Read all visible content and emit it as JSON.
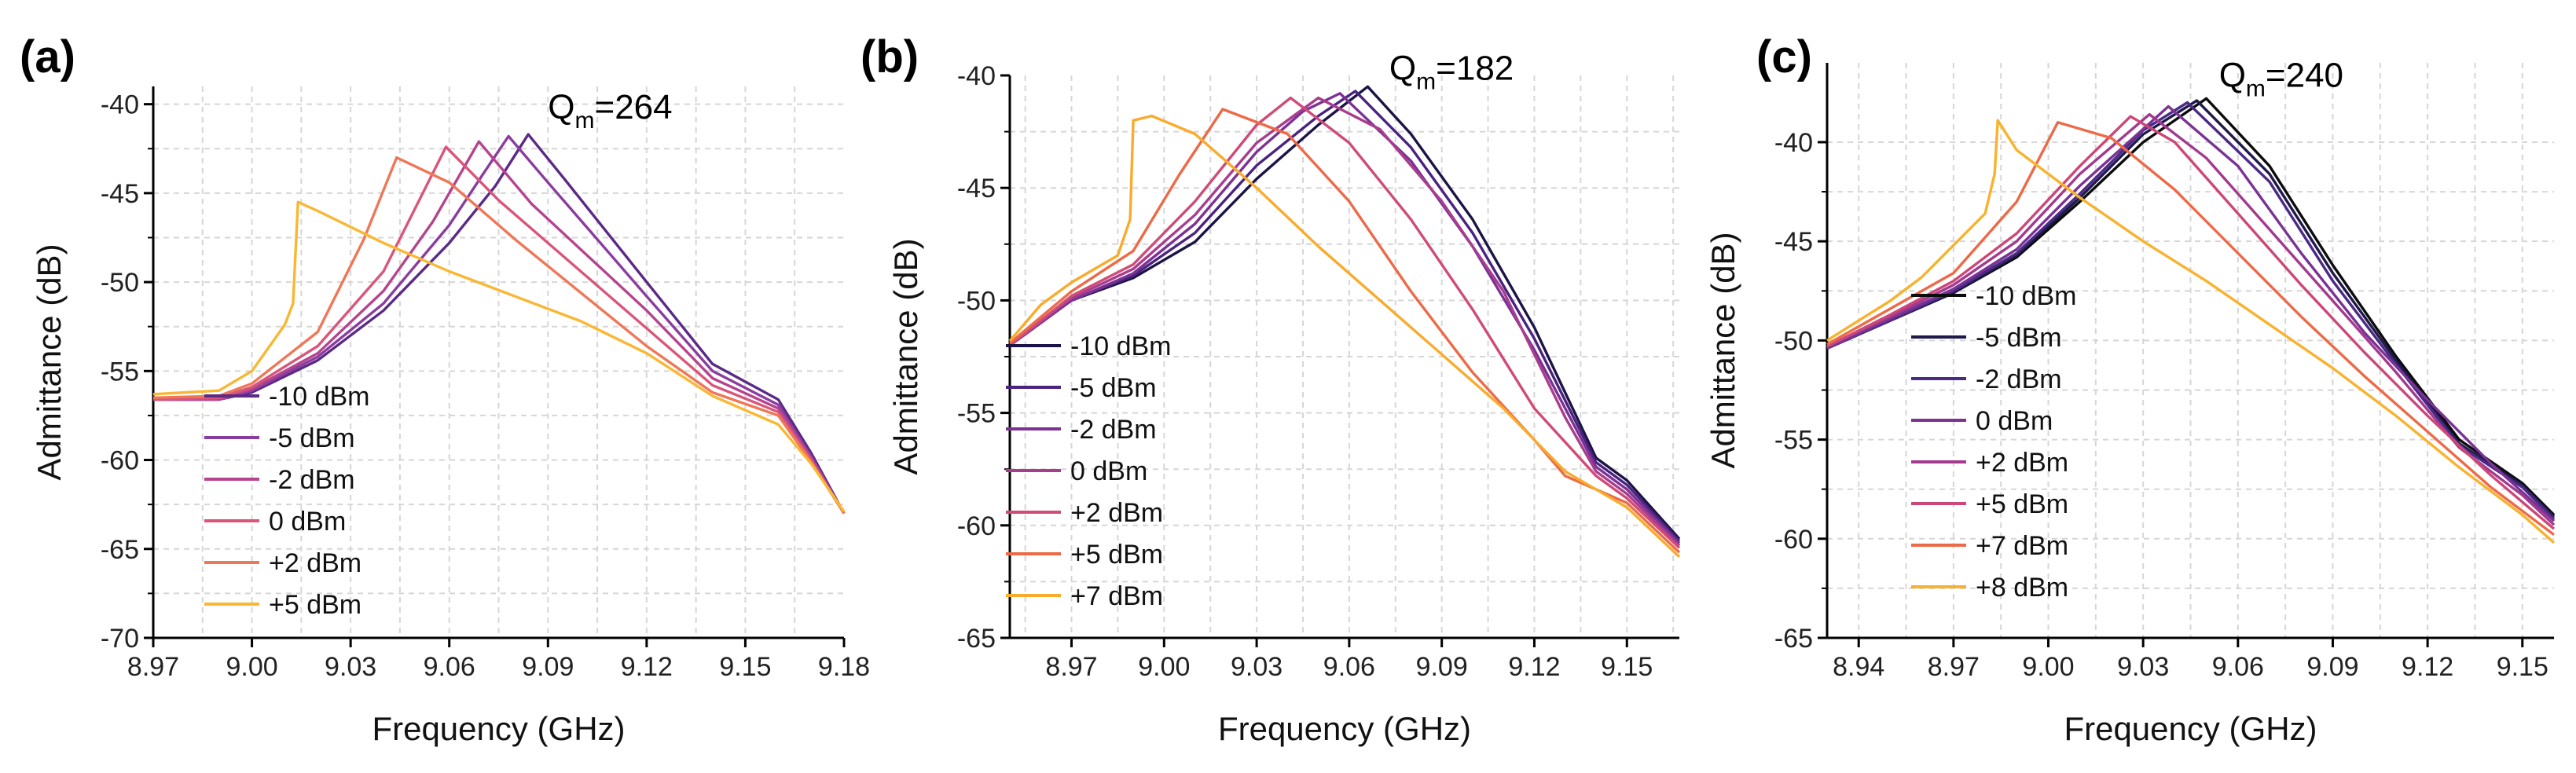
{
  "chart_data": [
    {
      "panel_label": "(a)",
      "type": "line",
      "xlabel": "Frequency (GHz)",
      "ylabel": "Admittance (dB)",
      "xlim": [
        8.97,
        9.18
      ],
      "ylim": [
        -70,
        -39
      ],
      "xticks": [
        "8.97",
        "9.00",
        "9.03",
        "9.06",
        "9.09",
        "9.12",
        "9.15",
        "9.18"
      ],
      "yticks": [
        "-40",
        "-45",
        "-50",
        "-55",
        "-60",
        "-65",
        "-70"
      ],
      "grid": true,
      "annotation": {
        "base": "Q",
        "sub": "m",
        "rest": "=264",
        "x": 9.09,
        "y": -40.8
      },
      "legend_position": "bottom-left",
      "series": [
        {
          "name": "-10 dBm",
          "color": "#5b2a86",
          "peak": 9.084,
          "peakY": -41.7,
          "jump": false,
          "x": [
            8.97,
            8.99,
            9.0,
            9.02,
            9.04,
            9.06,
            9.074,
            9.084,
            9.095,
            9.12,
            9.14,
            9.16,
            9.17,
            9.18
          ],
          "y": [
            -56.6,
            -56.6,
            -56.2,
            -54.4,
            -51.6,
            -47.8,
            -44.6,
            -41.7,
            -44.2,
            -50.0,
            -54.6,
            -56.6,
            -59.6,
            -63.0
          ]
        },
        {
          "name": "-5 dBm",
          "color": "#8a3d9e",
          "peak": 9.078,
          "peakY": -41.8,
          "jump": false,
          "x": [
            8.97,
            8.99,
            9.0,
            9.02,
            9.04,
            9.06,
            9.07,
            9.078,
            9.09,
            9.12,
            9.14,
            9.16,
            9.17,
            9.18
          ],
          "y": [
            -56.6,
            -56.6,
            -56.1,
            -54.2,
            -51.2,
            -46.8,
            -44.0,
            -41.8,
            -44.4,
            -50.8,
            -55.0,
            -56.9,
            -59.8,
            -63.0
          ]
        },
        {
          "name": "-2 dBm",
          "color": "#b5448f",
          "peak": 9.069,
          "peakY": -42.1,
          "jump": false,
          "x": [
            8.97,
            8.99,
            9.0,
            9.02,
            9.04,
            9.055,
            9.069,
            9.085,
            9.12,
            9.14,
            9.16,
            9.17,
            9.18
          ],
          "y": [
            -56.6,
            -56.6,
            -56.0,
            -54.0,
            -50.5,
            -46.6,
            -42.1,
            -45.6,
            -51.6,
            -55.4,
            -57.1,
            -59.9,
            -63.0
          ]
        },
        {
          "name": "0 dBm",
          "color": "#d9567a",
          "peak": 9.059,
          "peakY": -42.4,
          "jump": false,
          "x": [
            8.97,
            8.99,
            9.0,
            9.02,
            9.04,
            9.059,
            9.075,
            9.1,
            9.12,
            9.14,
            9.16,
            9.17,
            9.18
          ],
          "y": [
            -56.6,
            -56.5,
            -55.9,
            -53.6,
            -49.4,
            -42.4,
            -45.4,
            -49.4,
            -52.6,
            -55.8,
            -57.3,
            -60.0,
            -63.0
          ]
        },
        {
          "name": "+2 dBm",
          "color": "#ef7758",
          "peak": 9.044,
          "peakY": -43.0,
          "jump": false,
          "x": [
            8.97,
            8.99,
            9.0,
            9.02,
            9.034,
            9.044,
            9.06,
            9.08,
            9.1,
            9.12,
            9.14,
            9.16,
            9.17,
            9.18
          ],
          "y": [
            -56.5,
            -56.4,
            -55.7,
            -52.8,
            -47.6,
            -43.0,
            -44.4,
            -47.6,
            -50.6,
            -53.6,
            -56.2,
            -57.5,
            -60.1,
            -63.0
          ]
        },
        {
          "name": "+5 dBm",
          "color": "#f9b733",
          "peak": 9.014,
          "peakY": -45.5,
          "jump": true,
          "x": [
            8.97,
            8.99,
            9.0,
            9.01,
            9.0125,
            9.014,
            9.02,
            9.04,
            9.06,
            9.08,
            9.1,
            9.12,
            9.14,
            9.16,
            9.17,
            9.18
          ],
          "y": [
            -56.3,
            -56.1,
            -55.0,
            -52.4,
            -51.2,
            -45.5,
            -46.0,
            -47.8,
            -49.4,
            -50.8,
            -52.2,
            -54.0,
            -56.4,
            -58.0,
            -60.2,
            -62.9
          ]
        }
      ]
    },
    {
      "panel_label": "(b)",
      "type": "line",
      "xlabel": "Frequency (GHz)",
      "ylabel": "Admittance (dB)",
      "xlim": [
        8.95,
        9.167
      ],
      "ylim": [
        -65,
        -40
      ],
      "xticks": [
        "8.97",
        "9.00",
        "9.03",
        "9.06",
        "9.09",
        "9.12",
        "9.15"
      ],
      "yticks": [
        "-40",
        "-45",
        "-50",
        "-55",
        "-60",
        "-65"
      ],
      "grid": true,
      "annotation": {
        "base": "Q",
        "sub": "m",
        "rest": "=182",
        "x": 9.073,
        "y": -40.2
      },
      "legend_position": "bottom-left",
      "series": [
        {
          "name": "-10 dBm",
          "color": "#1c1446",
          "peak": 9.066,
          "peakY": -40.5,
          "jump": false,
          "x": [
            8.95,
            8.97,
            8.99,
            9.01,
            9.03,
            9.05,
            9.066,
            9.08,
            9.1,
            9.12,
            9.14,
            9.15,
            9.167
          ],
          "y": [
            -52.0,
            -50.0,
            -49.0,
            -47.4,
            -44.6,
            -42.2,
            -40.5,
            -42.6,
            -46.4,
            -51.2,
            -57.0,
            -58.0,
            -60.6
          ]
        },
        {
          "name": "-5 dBm",
          "color": "#4a2380",
          "peak": 9.062,
          "peakY": -40.7,
          "jump": false,
          "x": [
            8.95,
            8.97,
            8.99,
            9.01,
            9.03,
            9.05,
            9.062,
            9.08,
            9.1,
            9.12,
            9.14,
            9.15,
            9.167
          ],
          "y": [
            -52.0,
            -50.0,
            -48.9,
            -47.0,
            -44.0,
            -41.8,
            -40.7,
            -43.2,
            -47.0,
            -51.7,
            -57.2,
            -58.2,
            -60.7
          ]
        },
        {
          "name": "-2 dBm",
          "color": "#7c3294",
          "peak": 9.057,
          "peakY": -40.8,
          "jump": false,
          "x": [
            8.95,
            8.97,
            8.99,
            9.01,
            9.03,
            9.045,
            9.057,
            9.08,
            9.1,
            9.12,
            9.14,
            9.15,
            9.167
          ],
          "y": [
            -52.0,
            -50.0,
            -48.8,
            -46.6,
            -43.4,
            -41.6,
            -40.8,
            -43.8,
            -47.6,
            -52.2,
            -57.4,
            -58.4,
            -60.8
          ]
        },
        {
          "name": "0 dBm",
          "color": "#a83d8e",
          "peak": 9.05,
          "peakY": -41.0,
          "jump": false,
          "x": [
            8.95,
            8.97,
            8.99,
            9.01,
            9.03,
            9.05,
            9.07,
            9.09,
            9.11,
            9.13,
            9.14,
            9.15,
            9.167
          ],
          "y": [
            -52.0,
            -49.9,
            -48.6,
            -46.2,
            -43.0,
            -41.0,
            -42.4,
            -45.6,
            -49.6,
            -55.2,
            -57.6,
            -58.6,
            -60.9
          ]
        },
        {
          "name": "+2 dBm",
          "color": "#cf4b78",
          "peak": 9.041,
          "peakY": -41.0,
          "jump": false,
          "x": [
            8.95,
            8.97,
            8.99,
            9.01,
            9.03,
            9.041,
            9.06,
            9.08,
            9.1,
            9.12,
            9.14,
            9.15,
            9.167
          ],
          "y": [
            -52.0,
            -49.8,
            -48.4,
            -45.6,
            -42.2,
            -41.0,
            -43.0,
            -46.4,
            -50.4,
            -54.8,
            -57.8,
            -58.8,
            -61.0
          ]
        },
        {
          "name": "+5 dBm",
          "color": "#ec6a48",
          "peak": 9.019,
          "peakY": -41.5,
          "jump": false,
          "x": [
            8.95,
            8.97,
            8.99,
            9.005,
            9.019,
            9.04,
            9.06,
            9.08,
            9.1,
            9.12,
            9.13,
            9.14,
            9.15,
            9.167
          ],
          "y": [
            -51.9,
            -49.6,
            -47.8,
            -44.4,
            -41.5,
            -42.6,
            -45.6,
            -49.6,
            -53.2,
            -56.2,
            -57.8,
            -58.4,
            -59.0,
            -61.2
          ]
        },
        {
          "name": "+7 dBm",
          "color": "#f9ab2c",
          "peak": 8.996,
          "peakY": -41.8,
          "jump": true,
          "x": [
            8.95,
            8.96,
            8.97,
            8.985,
            8.989,
            8.99,
            8.996,
            9.01,
            9.03,
            9.05,
            9.07,
            9.09,
            9.11,
            9.13,
            9.15,
            9.167
          ],
          "y": [
            -51.8,
            -50.2,
            -49.2,
            -48.0,
            -46.4,
            -42.0,
            -41.8,
            -42.6,
            -45.0,
            -47.6,
            -50.0,
            -52.4,
            -54.8,
            -57.6,
            -59.2,
            -61.4
          ]
        }
      ]
    },
    {
      "panel_label": "(c)",
      "type": "line",
      "xlabel": "Frequency (GHz)",
      "ylabel": "Admittance (dB)",
      "xlim": [
        8.93,
        9.16
      ],
      "ylim": [
        -65,
        -36
      ],
      "xticks": [
        "8.94",
        "8.97",
        "9.00",
        "9.03",
        "9.06",
        "9.09",
        "9.12",
        "9.15"
      ],
      "yticks": [
        "-40",
        "-45",
        "-50",
        "-55",
        "-60",
        "-65"
      ],
      "grid": true,
      "annotation": {
        "base": "Q",
        "sub": "m",
        "rest": "=240",
        "x": 9.054,
        "y": -37.2
      },
      "legend_position": "top-left",
      "series": [
        {
          "name": "-10 dBm",
          "color": "#0c0c0c",
          "peak": 9.05,
          "peakY": -37.8,
          "jump": false,
          "x": [
            8.93,
            8.95,
            8.97,
            8.99,
            9.01,
            9.03,
            9.05,
            9.07,
            9.09,
            9.11,
            9.13,
            9.15,
            9.16
          ],
          "y": [
            -50.4,
            -49.0,
            -47.6,
            -45.8,
            -43.0,
            -40.0,
            -37.8,
            -41.2,
            -46.2,
            -50.8,
            -55.0,
            -57.2,
            -58.8
          ]
        },
        {
          "name": "-5 dBm",
          "color": "#1f1a4a",
          "peak": 9.047,
          "peakY": -37.9,
          "jump": false,
          "x": [
            8.93,
            8.95,
            8.97,
            8.99,
            9.01,
            9.03,
            9.047,
            9.07,
            9.09,
            9.11,
            9.13,
            9.15,
            9.16
          ],
          "y": [
            -50.4,
            -49.0,
            -47.6,
            -45.7,
            -42.8,
            -39.6,
            -37.9,
            -41.6,
            -46.6,
            -51.0,
            -55.2,
            -57.3,
            -58.9
          ]
        },
        {
          "name": "-2 dBm",
          "color": "#4b2a86",
          "peak": 9.044,
          "peakY": -38.0,
          "jump": false,
          "x": [
            8.93,
            8.95,
            8.97,
            8.99,
            9.01,
            9.03,
            9.044,
            9.07,
            9.09,
            9.11,
            9.13,
            9.15,
            9.16
          ],
          "y": [
            -50.4,
            -49.0,
            -47.5,
            -45.6,
            -42.6,
            -39.4,
            -38.0,
            -42.0,
            -47.0,
            -51.2,
            -55.3,
            -57.4,
            -59.0
          ]
        },
        {
          "name": "0 dBm",
          "color": "#7a3295",
          "peak": 9.038,
          "peakY": -38.2,
          "jump": false,
          "x": [
            8.93,
            8.95,
            8.97,
            8.99,
            9.01,
            9.038,
            9.06,
            9.08,
            9.1,
            9.12,
            9.14,
            9.16
          ],
          "y": [
            -50.4,
            -48.9,
            -47.4,
            -45.4,
            -42.2,
            -38.2,
            -41.2,
            -45.6,
            -49.6,
            -53.0,
            -56.2,
            -59.1
          ]
        },
        {
          "name": "+2 dBm",
          "color": "#a23a8f",
          "peak": 9.032,
          "peakY": -38.6,
          "jump": false,
          "x": [
            8.93,
            8.95,
            8.97,
            8.99,
            9.01,
            9.032,
            9.05,
            9.07,
            9.09,
            9.11,
            9.13,
            9.15,
            9.16
          ],
          "y": [
            -50.3,
            -48.8,
            -47.2,
            -45.0,
            -41.6,
            -38.6,
            -40.8,
            -44.4,
            -48.0,
            -51.6,
            -55.4,
            -57.8,
            -59.3
          ]
        },
        {
          "name": "+5 dBm",
          "color": "#cc4778",
          "peak": 9.026,
          "peakY": -38.7,
          "jump": false,
          "x": [
            8.93,
            8.95,
            8.97,
            8.99,
            9.01,
            9.026,
            9.04,
            9.06,
            9.08,
            9.1,
            9.12,
            9.14,
            9.16
          ],
          "y": [
            -50.3,
            -48.7,
            -47.0,
            -44.6,
            -41.2,
            -38.7,
            -40.0,
            -43.6,
            -47.2,
            -50.6,
            -53.8,
            -56.8,
            -59.5
          ]
        },
        {
          "name": "+7 dBm",
          "color": "#ec6a48",
          "peak": 9.003,
          "peakY": -39.0,
          "jump": false,
          "x": [
            8.93,
            8.95,
            8.97,
            8.99,
            9.003,
            9.02,
            9.04,
            9.06,
            9.08,
            9.1,
            9.12,
            9.14,
            9.16
          ],
          "y": [
            -50.2,
            -48.4,
            -46.6,
            -43.0,
            -39.0,
            -39.8,
            -42.4,
            -45.6,
            -48.8,
            -51.8,
            -54.6,
            -57.4,
            -59.8
          ]
        },
        {
          "name": "+8 dBm",
          "color": "#f9b22e",
          "peak": 8.984,
          "peakY": -38.9,
          "jump": true,
          "x": [
            8.93,
            8.94,
            8.95,
            8.96,
            8.97,
            8.98,
            8.983,
            8.984,
            8.99,
            9.01,
            9.03,
            9.05,
            9.07,
            9.09,
            9.11,
            9.13,
            9.15,
            9.16
          ],
          "y": [
            -50.0,
            -49.0,
            -48.0,
            -46.8,
            -45.2,
            -43.6,
            -41.6,
            -38.9,
            -40.4,
            -42.8,
            -45.0,
            -47.0,
            -49.2,
            -51.4,
            -53.8,
            -56.4,
            -58.8,
            -60.2
          ]
        }
      ]
    }
  ]
}
